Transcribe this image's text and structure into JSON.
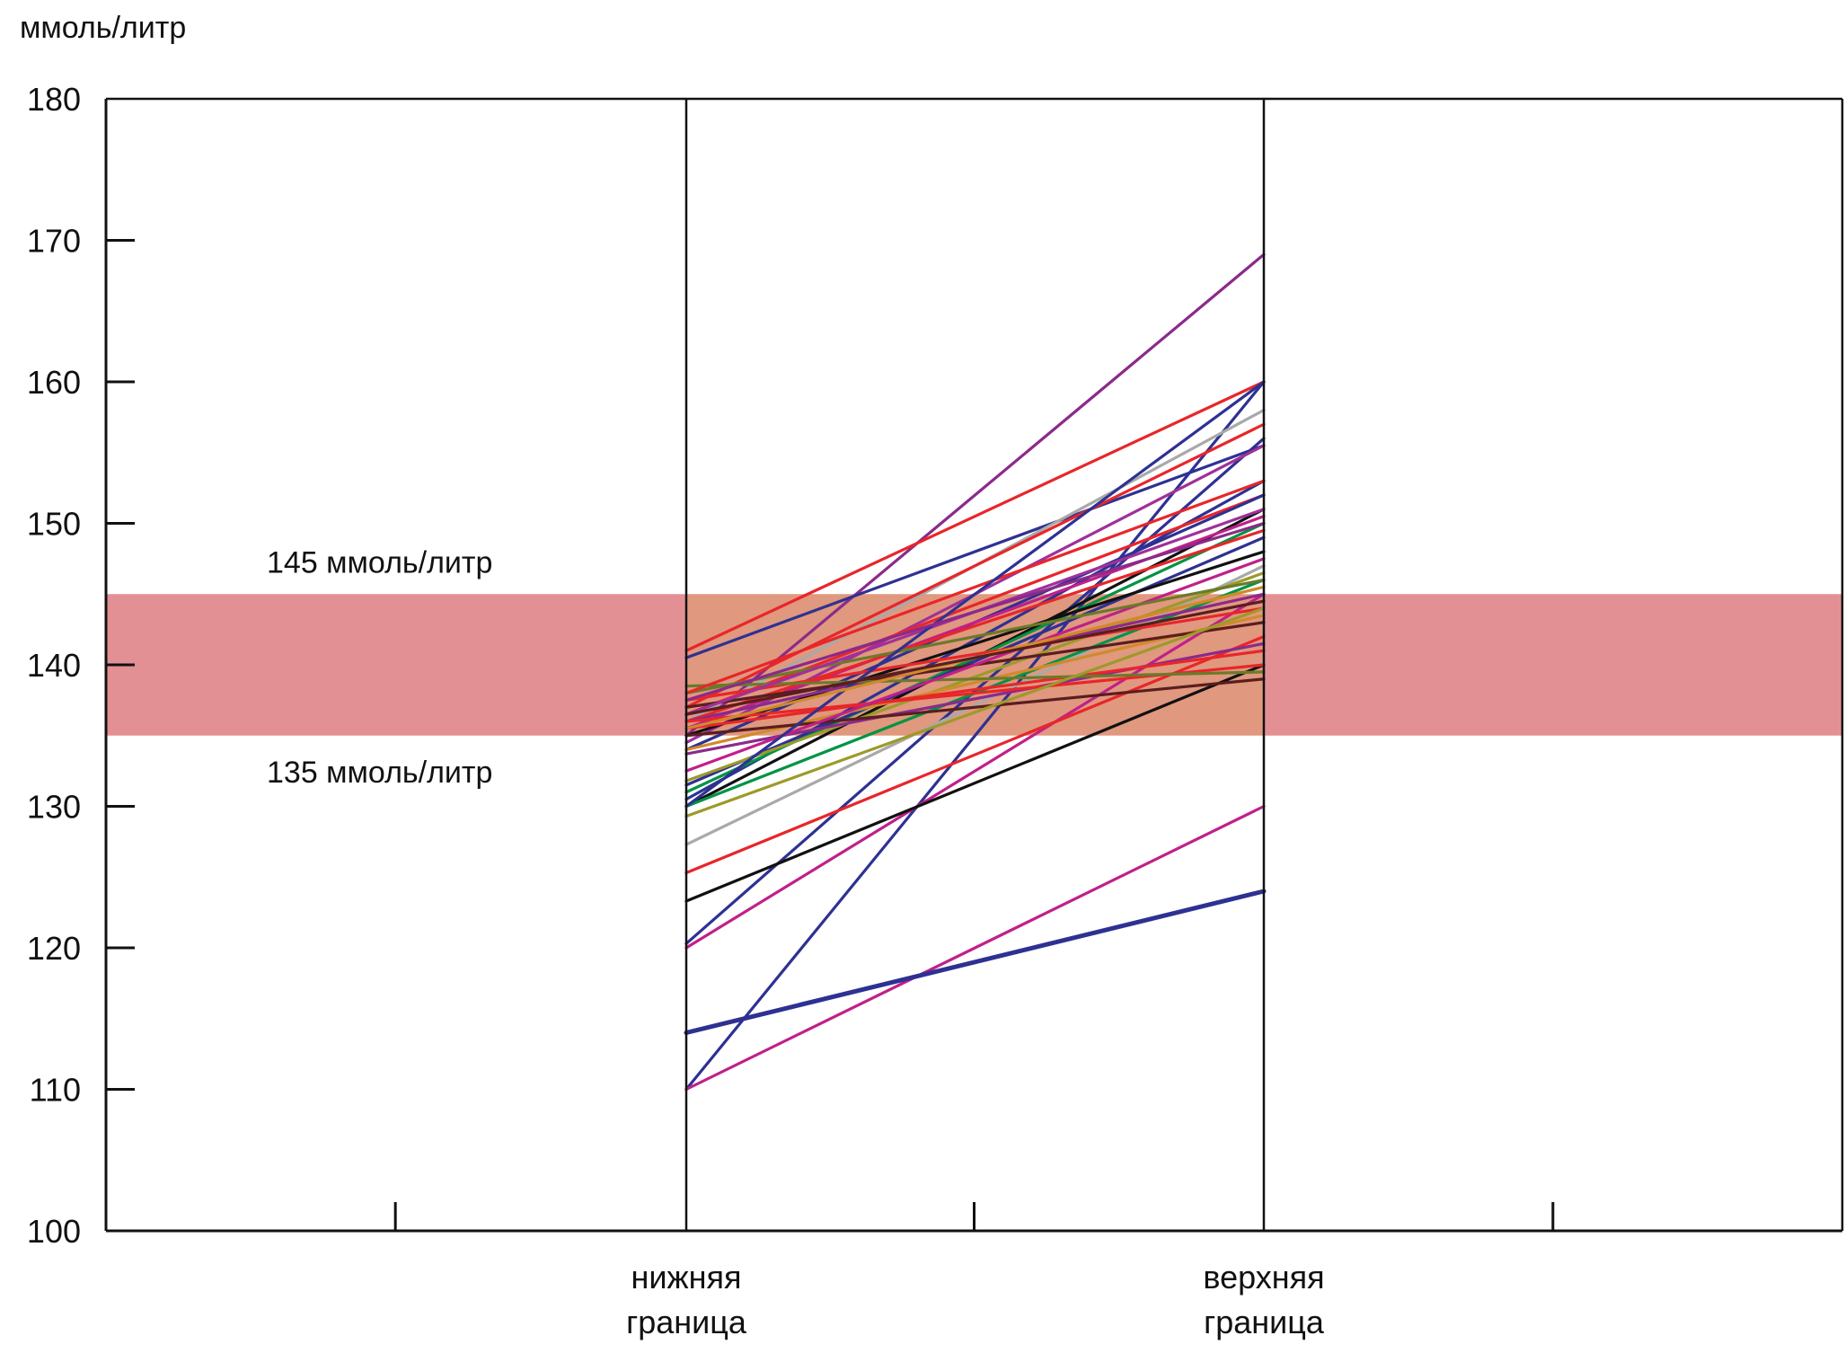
{
  "chart_data": {
    "type": "line",
    "title": "",
    "ylabel": "ммоль/литр",
    "xlabel": "",
    "ylim": [
      100,
      180
    ],
    "yticks": [
      100,
      110,
      120,
      130,
      140,
      150,
      160,
      170,
      180
    ],
    "ytick_labels": [
      "100",
      "110",
      "120",
      "130",
      "140",
      "150",
      "160",
      "170",
      "180"
    ],
    "x_positions_count": 6,
    "categories": [
      {
        "line1": "нижняя",
        "line2": "граница"
      },
      {
        "line1": "верхняя",
        "line2": "граница"
      }
    ],
    "grid": false,
    "legend": "none",
    "reference_band": {
      "low": 135,
      "high": 145,
      "color": "#E39095",
      "overlap_color": "#E0987E",
      "low_label": "135 ммоль/литр",
      "high_label": "145 ммоль/литр"
    },
    "series": [
      {
        "name": "s1",
        "color": "#8B2A8B",
        "values": [
          135,
          169
        ]
      },
      {
        "name": "s2",
        "color": "#E8262A",
        "values": [
          141,
          160
        ]
      },
      {
        "name": "s3",
        "color": "#2E3192",
        "values": [
          110,
          160
        ]
      },
      {
        "name": "s4",
        "color": "#2E3192",
        "values": [
          140.5,
          155.5
        ]
      },
      {
        "name": "s5",
        "color": "#A9A9A9",
        "values": [
          136,
          158
        ]
      },
      {
        "name": "s6",
        "color": "#E8262A",
        "values": [
          137,
          157
        ]
      },
      {
        "name": "s7",
        "color": "#2E3192",
        "values": [
          120.3,
          156
        ]
      },
      {
        "name": "s8",
        "color": "#A0309A",
        "values": [
          134.5,
          155.5
        ]
      },
      {
        "name": "s9",
        "color": "#2E3192",
        "values": [
          130.5,
          153
        ]
      },
      {
        "name": "s10",
        "color": "#E8262A",
        "values": [
          136.5,
          152
        ]
      },
      {
        "name": "s11",
        "color": "#2E3192",
        "values": [
          134,
          152
        ]
      },
      {
        "name": "s12",
        "color": "#111111",
        "values": [
          130,
          151
        ]
      },
      {
        "name": "s13",
        "color": "#C0208A",
        "values": [
          135.5,
          150.5
        ]
      },
      {
        "name": "s14",
        "color": "#009444",
        "values": [
          131,
          150
        ]
      },
      {
        "name": "s15",
        "color": "#E8262A",
        "values": [
          136,
          149.5
        ]
      },
      {
        "name": "s16",
        "color": "#2E3192",
        "values": [
          131.5,
          149
        ]
      },
      {
        "name": "s17",
        "color": "#111111",
        "values": [
          135,
          148
        ]
      },
      {
        "name": "s18",
        "color": "#A9A9A9",
        "values": [
          127.3,
          147
        ]
      },
      {
        "name": "s19",
        "color": "#9C9A2A",
        "values": [
          131.8,
          146.5
        ]
      },
      {
        "name": "s20",
        "color": "#009444",
        "values": [
          130,
          146
        ]
      },
      {
        "name": "s21",
        "color": "#C0208A",
        "values": [
          120,
          145
        ]
      },
      {
        "name": "s22",
        "color": "#8B2A8B",
        "values": [
          136,
          145
        ]
      },
      {
        "name": "s23",
        "color": "#E8262A",
        "values": [
          137.5,
          144
        ]
      },
      {
        "name": "s24",
        "color": "#D08A2A",
        "values": [
          134,
          143.5
        ]
      },
      {
        "name": "s25",
        "color": "#5A1E1E",
        "values": [
          137,
          143
        ]
      },
      {
        "name": "s26",
        "color": "#E8262A",
        "values": [
          125.3,
          142
        ]
      },
      {
        "name": "s27",
        "color": "#8B2A8B",
        "values": [
          133.7,
          141.5
        ]
      },
      {
        "name": "s28",
        "color": "#E8262A",
        "values": [
          135.5,
          141
        ]
      },
      {
        "name": "s29",
        "color": "#111111",
        "values": [
          123.3,
          140
        ]
      },
      {
        "name": "s30",
        "color": "#E8262A",
        "values": [
          136,
          140
        ]
      },
      {
        "name": "s31",
        "color": "#6B7A2A",
        "values": [
          138.5,
          139.5
        ]
      },
      {
        "name": "s32",
        "color": "#5A1E1E",
        "values": [
          135,
          139
        ]
      },
      {
        "name": "s33",
        "color": "#9C9A2A",
        "values": [
          129.3,
          144
        ]
      },
      {
        "name": "s34",
        "color": "#C0208A",
        "values": [
          132.5,
          147.5
        ]
      },
      {
        "name": "s35",
        "color": "#6B7A2A",
        "values": [
          138,
          146
        ]
      },
      {
        "name": "s36",
        "color": "#C0208A",
        "values": [
          110,
          130
        ]
      },
      {
        "name": "s37",
        "color": "#2E3192",
        "values": [
          114,
          124
        ]
      },
      {
        "name": "s38",
        "color": "#A0309A",
        "values": [
          136.5,
          151
        ]
      },
      {
        "name": "s39",
        "color": "#E8262A",
        "values": [
          138,
          153
        ]
      },
      {
        "name": "s40",
        "color": "#2E3192",
        "values": [
          130,
          160
        ]
      },
      {
        "name": "s41",
        "color": "#8B2A8B",
        "values": [
          137.5,
          150
        ]
      },
      {
        "name": "s42",
        "color": "#D08A2A",
        "values": [
          135.5,
          145.5
        ]
      },
      {
        "name": "s43",
        "color": "#5A1E1E",
        "values": [
          136.5,
          144.5
        ]
      }
    ]
  }
}
